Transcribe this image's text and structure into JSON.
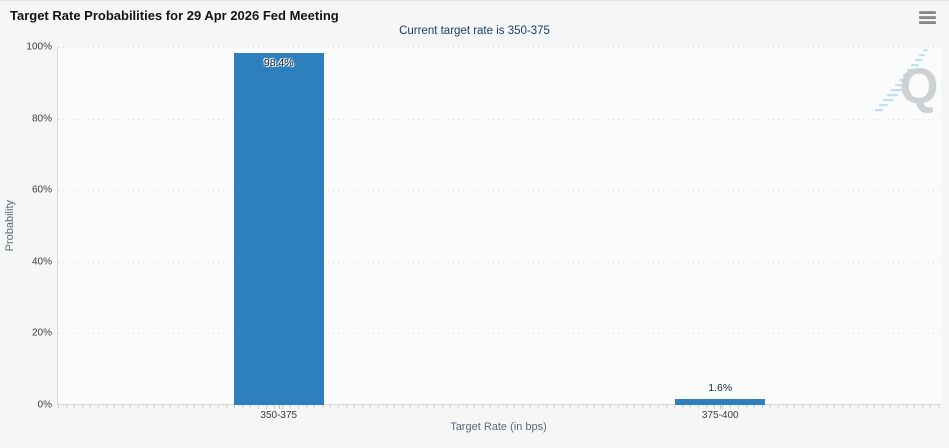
{
  "header": {
    "title": "Target Rate Probabilities for 29 Apr 2026 Fed Meeting"
  },
  "chart": {
    "subtitle": "Current target rate is 350-375",
    "xlabel": "Target Rate (in bps)",
    "ylabel": "Probability",
    "y_ticks": [
      "100%",
      "80%",
      "60%",
      "40%",
      "20%",
      "0%"
    ],
    "watermark_letter": "Q"
  },
  "chart_data": {
    "type": "bar",
    "title": "Target Rate Probabilities for 29 Apr 2026 Fed Meeting",
    "subtitle": "Current target rate is 350-375",
    "categories": [
      "350-375",
      "375-400"
    ],
    "values": [
      98.4,
      1.6
    ],
    "data_labels": [
      "98.4%",
      "1.6%"
    ],
    "xlabel": "Target Rate (in bps)",
    "ylabel": "Probability",
    "ylim": [
      0,
      100
    ],
    "y_tick_step": 20,
    "grid": "horizontal-dotted",
    "legend": "none",
    "bar_color": "#2e80bd",
    "subtitle_color": "#1c3e6b",
    "background_color": "#f5f6f6"
  }
}
